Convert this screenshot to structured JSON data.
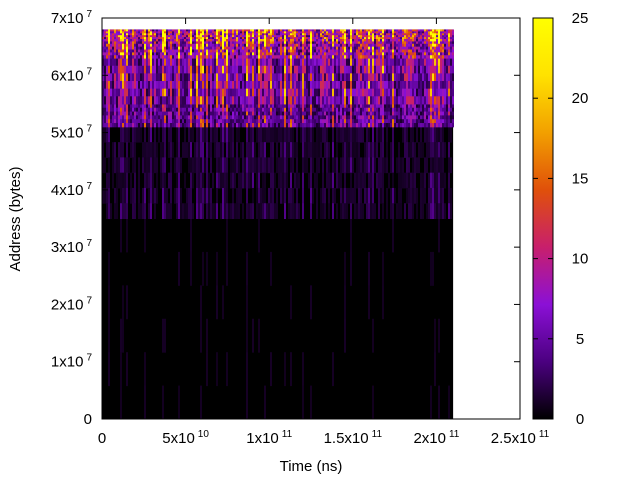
{
  "chart_data": {
    "type": "heatmap",
    "title": "",
    "xlabel": "Time (ns)",
    "ylabel": "Address (bytes)",
    "xlim": [
      0,
      250000000000
    ],
    "ylim": [
      0,
      70000000
    ],
    "x_ticks": [
      {
        "value": 0,
        "mant": "0",
        "exp": ""
      },
      {
        "value": 50000000000,
        "mant": "5x10",
        "exp": "10"
      },
      {
        "value": 100000000000,
        "mant": "1x10",
        "exp": "11"
      },
      {
        "value": 150000000000,
        "mant": "1.5x10",
        "exp": "11"
      },
      {
        "value": 200000000000,
        "mant": "2x10",
        "exp": "11"
      },
      {
        "value": 250000000000,
        "mant": "2.5x10",
        "exp": "11"
      }
    ],
    "y_ticks": [
      {
        "value": 0,
        "mant": "0",
        "exp": ""
      },
      {
        "value": 10000000,
        "mant": "1x10",
        "exp": "7"
      },
      {
        "value": 20000000,
        "mant": "2x10",
        "exp": "7"
      },
      {
        "value": 30000000,
        "mant": "3x10",
        "exp": "7"
      },
      {
        "value": 40000000,
        "mant": "4x10",
        "exp": "7"
      },
      {
        "value": 50000000,
        "mant": "5x10",
        "exp": "7"
      },
      {
        "value": 60000000,
        "mant": "6x10",
        "exp": "7"
      },
      {
        "value": 70000000,
        "mant": "7x10",
        "exp": "7"
      }
    ],
    "colorbar": {
      "min": 0,
      "max": 25,
      "ticks": [
        0,
        5,
        10,
        15,
        20,
        25
      ],
      "palette": [
        "#000000",
        "#4b0080",
        "#8b10d6",
        "#c81f6c",
        "#e0500a",
        "#f2a000",
        "#ffe200",
        "#ffff00"
      ]
    },
    "data_extent": {
      "x": [
        0,
        210000000000
      ],
      "y": [
        0,
        68000000
      ]
    },
    "address_bands": [
      {
        "y": [
          0,
          35000000
        ],
        "intensity": 0.4
      },
      {
        "y": [
          35000000,
          51000000
        ],
        "intensity": 1.5
      },
      {
        "y": [
          51000000,
          55000000
        ],
        "intensity": 6
      },
      {
        "y": [
          55000000,
          63000000
        ],
        "intensity": 8
      },
      {
        "y": [
          63000000,
          66000000
        ],
        "intensity": 11
      },
      {
        "y": [
          66000000,
          68000000
        ],
        "intensity": 14
      }
    ],
    "grid": false,
    "legend": "colorbar-right"
  }
}
